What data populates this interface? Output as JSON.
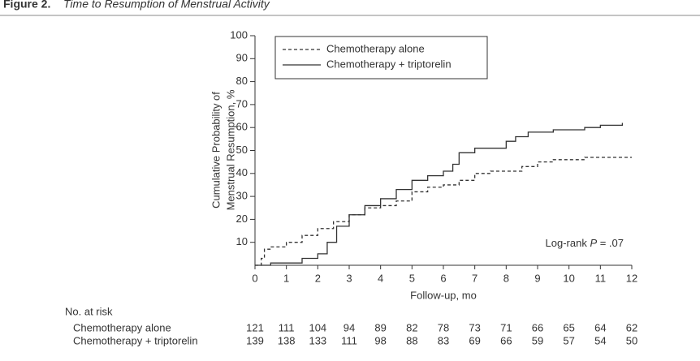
{
  "chart_data": {
    "type": "line",
    "step": true,
    "figure_label": "Figure 2.",
    "title": "Time to Resumption of Menstrual Activity",
    "xlabel": "Follow-up, mo",
    "ylabel": [
      "Cumulative Probability of",
      "Menstrual Resumption, %"
    ],
    "xlim": [
      0,
      12
    ],
    "xticks": [
      0,
      1,
      2,
      3,
      4,
      5,
      6,
      7,
      8,
      9,
      10,
      11,
      12
    ],
    "ylim": [
      0,
      100
    ],
    "yticks": [
      10,
      20,
      30,
      40,
      50,
      60,
      70,
      80,
      90,
      100
    ],
    "legend": "upper left",
    "annotation": [
      "Log-rank ",
      "P",
      " = .07"
    ],
    "series": [
      {
        "name": "Chemotherapy alone",
        "color": "#333333",
        "dash": true,
        "x": [
          0,
          0.2,
          0.3,
          0.5,
          1.0,
          1.5,
          2.0,
          2.5,
          3.0,
          3.5,
          4.0,
          4.5,
          5.0,
          5.5,
          6.0,
          6.5,
          7.0,
          7.5,
          8.0,
          8.5,
          9.0,
          9.5,
          10.0,
          10.5,
          11.0,
          12.0
        ],
        "values": [
          0,
          3,
          7,
          8,
          10,
          13,
          16,
          19,
          22,
          25,
          26,
          28,
          32,
          34,
          35,
          37,
          40,
          41,
          41,
          43,
          45,
          46,
          46,
          47,
          47,
          47
        ]
      },
      {
        "name": "Chemotherapy + triptorelin",
        "color": "#333333",
        "dash": false,
        "x": [
          0,
          0.5,
          1.0,
          1.5,
          2.0,
          2.3,
          2.6,
          3.0,
          3.5,
          4.0,
          4.5,
          5.0,
          5.5,
          6.0,
          6.3,
          6.5,
          7.0,
          7.5,
          8.0,
          8.3,
          8.7,
          9.0,
          9.5,
          10.0,
          10.5,
          11.0,
          11.7
        ],
        "values": [
          0,
          1,
          1,
          3,
          5,
          10,
          17,
          22,
          26,
          29,
          33,
          37,
          39,
          41,
          44,
          49,
          51,
          51,
          54,
          56,
          58,
          58,
          59,
          59,
          60,
          61,
          62
        ]
      }
    ],
    "risk_table": {
      "title": "No. at risk",
      "rows": [
        {
          "label": "Chemotherapy alone",
          "values": [
            121,
            111,
            104,
            94,
            89,
            82,
            78,
            73,
            71,
            66,
            65,
            64,
            62
          ]
        },
        {
          "label": "Chemotherapy + triptorelin",
          "values": [
            139,
            138,
            133,
            111,
            98,
            88,
            83,
            69,
            66,
            59,
            57,
            54,
            50
          ]
        }
      ]
    }
  }
}
